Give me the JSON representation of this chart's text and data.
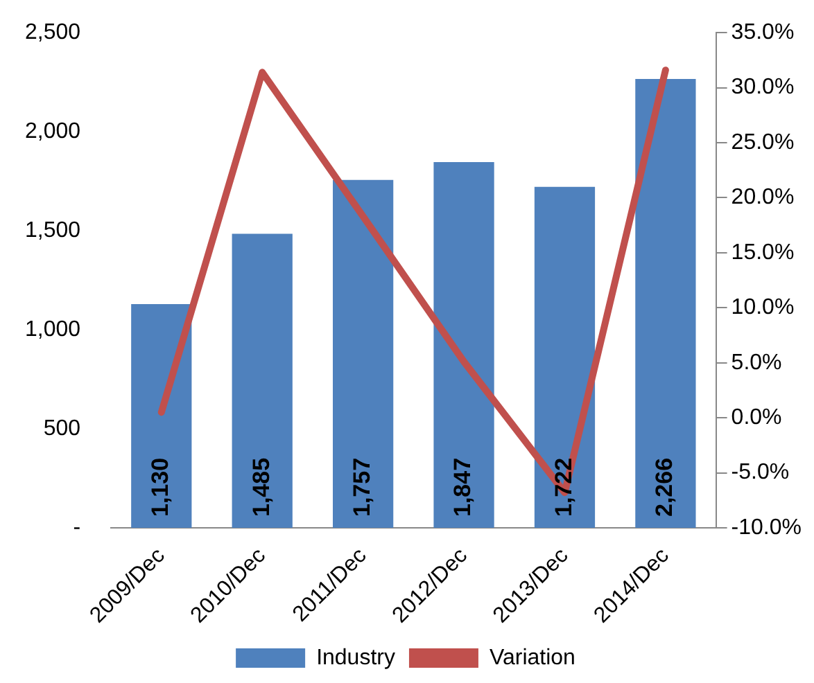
{
  "chart_data": {
    "type": "bar",
    "categories": [
      "2009/Dec",
      "2010/Dec",
      "2011/Dec",
      "2012/Dec",
      "2013/Dec",
      "2014/Dec"
    ],
    "series": [
      {
        "name": "Industry",
        "color": "#4f81bd",
        "values": [
          1130,
          1485,
          1757,
          1847,
          1722,
          2266
        ],
        "value_labels": [
          "1,130",
          "1,485",
          "1,757",
          "1,847",
          "1,722",
          "2,266"
        ]
      },
      {
        "name": "Variation",
        "type": "line",
        "axis": "y2",
        "color": "#c0504d",
        "values": [
          0.5,
          31.4,
          18.3,
          5.1,
          -6.8,
          31.6
        ]
      }
    ],
    "ylim": [
      0,
      2500
    ],
    "yticks": [
      {
        "value": 0,
        "label": "-"
      },
      {
        "value": 500,
        "label": "500"
      },
      {
        "value": 1000,
        "label": "1,000"
      },
      {
        "value": 1500,
        "label": "1,500"
      },
      {
        "value": 2000,
        "label": "2,000"
      },
      {
        "value": 2500,
        "label": "2,500"
      }
    ],
    "y2lim": [
      -10,
      35
    ],
    "y2ticks": [
      {
        "value": -10,
        "label": "-10.0%"
      },
      {
        "value": -5,
        "label": "-5.0%"
      },
      {
        "value": 0,
        "label": "0.0%"
      },
      {
        "value": 5,
        "label": "5.0%"
      },
      {
        "value": 10,
        "label": "10.0%"
      },
      {
        "value": 15,
        "label": "15.0%"
      },
      {
        "value": 20,
        "label": "20.0%"
      },
      {
        "value": 25,
        "label": "25.0%"
      },
      {
        "value": 30,
        "label": "30.0%"
      },
      {
        "value": 35,
        "label": "35.0%"
      }
    ],
    "grid": false,
    "legend": "bottom",
    "marker": "none",
    "line_style": "solid"
  }
}
